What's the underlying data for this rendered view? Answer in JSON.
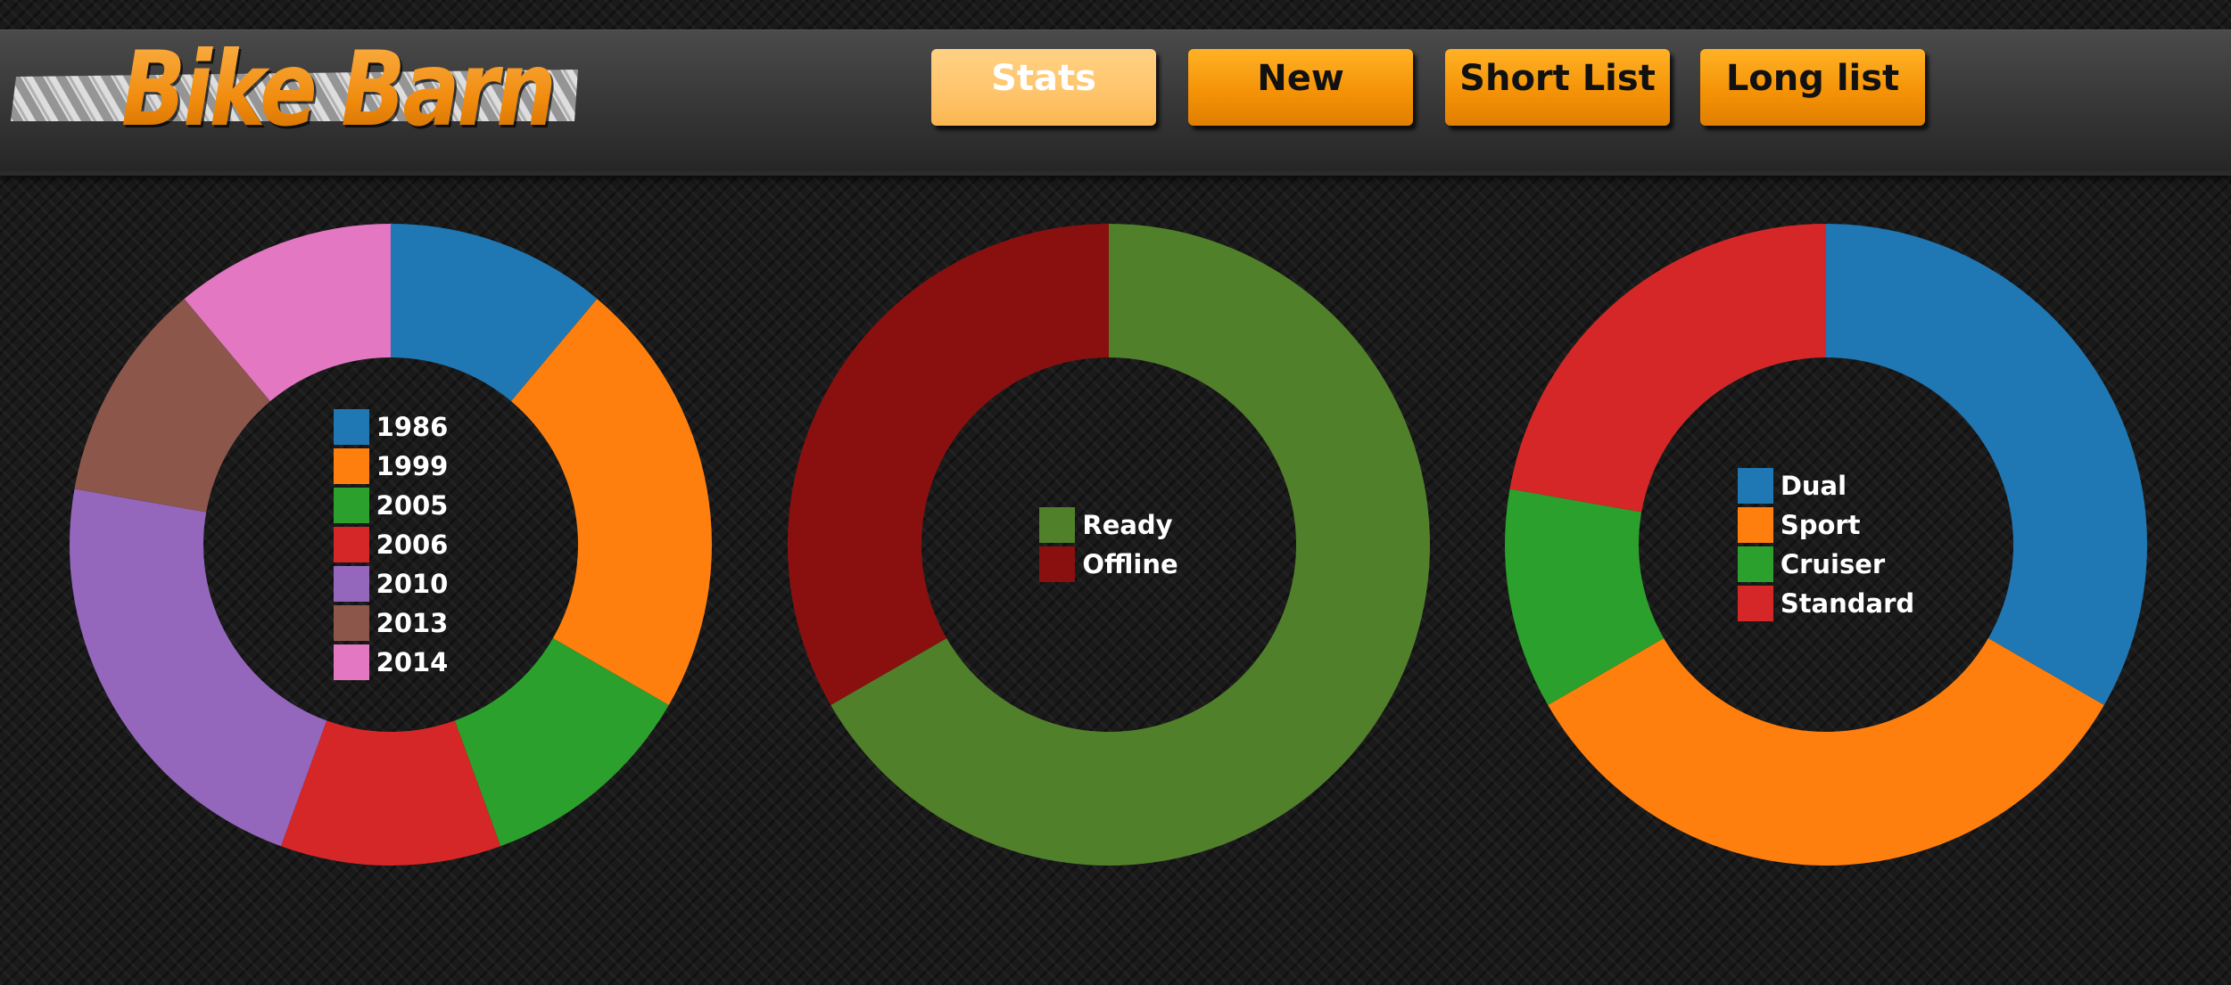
{
  "app": {
    "logo_text": "Bike Barn"
  },
  "nav": {
    "buttons": [
      {
        "label": "Stats",
        "active": true
      },
      {
        "label": "New",
        "active": false
      },
      {
        "label": "Short List",
        "active": false
      },
      {
        "label": "Long list",
        "active": false
      }
    ]
  },
  "chart_data": [
    {
      "type": "pie",
      "variant": "donut",
      "title": "",
      "legend_position": "center",
      "categories": [
        "1986",
        "1999",
        "2005",
        "2006",
        "2010",
        "2013",
        "2014"
      ],
      "values": [
        1,
        2,
        1,
        1,
        2,
        1,
        1
      ],
      "colors": [
        "#1f77b4",
        "#ff7f0e",
        "#2ca02c",
        "#d62728",
        "#9467bd",
        "#8c564b",
        "#e377c2"
      ]
    },
    {
      "type": "pie",
      "variant": "donut",
      "title": "",
      "legend_position": "center",
      "categories": [
        "Ready",
        "Offline"
      ],
      "values": [
        6,
        3
      ],
      "colors": [
        "#51802a",
        "#8a1010"
      ]
    },
    {
      "type": "pie",
      "variant": "donut",
      "title": "",
      "legend_position": "center",
      "categories": [
        "Dual",
        "Sport",
        "Cruiser",
        "Standard"
      ],
      "values": [
        3,
        3,
        1,
        2
      ],
      "colors": [
        "#1f77b4",
        "#ff7f0e",
        "#2ca02c",
        "#d62728"
      ]
    }
  ]
}
